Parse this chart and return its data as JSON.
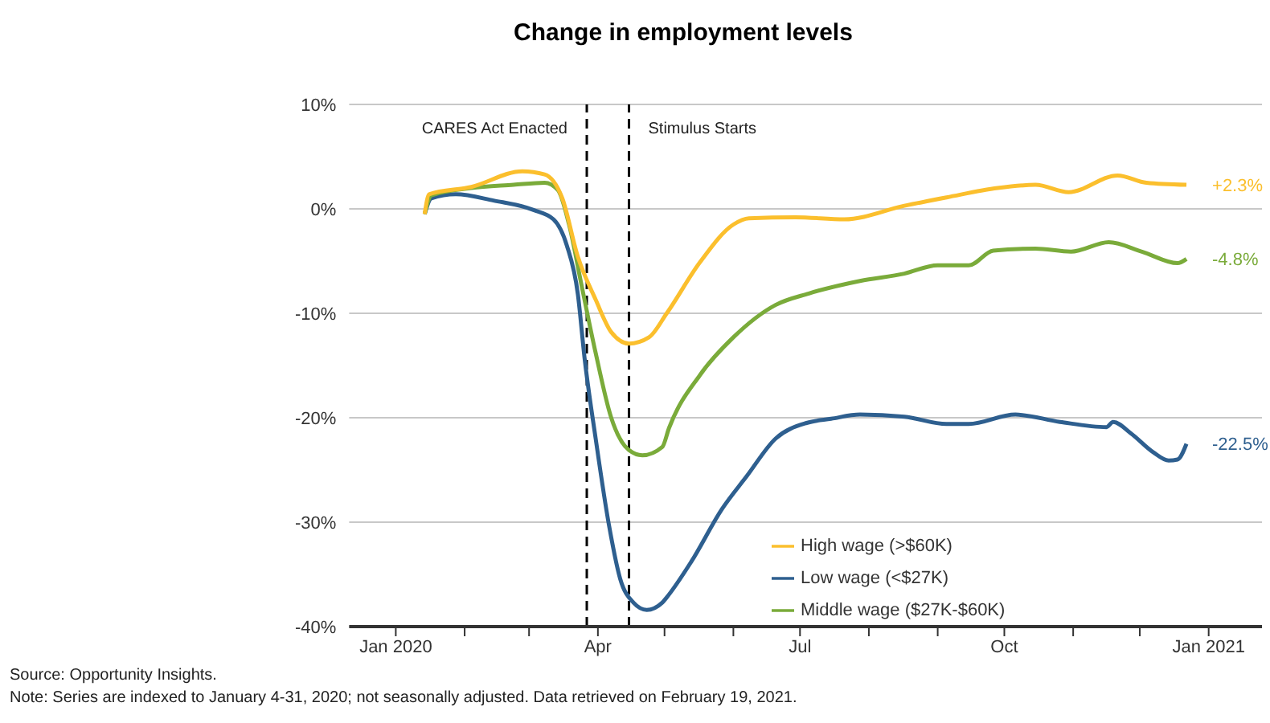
{
  "chart_data": {
    "type": "line",
    "title": "Change in employment levels",
    "series": [
      {
        "name": "Low wage (<$27K)",
        "color": "#2e5f8f",
        "x": [
          "2020-01-14",
          "2020-01-17",
          "2020-01-28",
          "2020-02-14",
          "2020-03-03",
          "2020-03-12",
          "2020-03-18",
          "2020-03-23",
          "2020-03-26",
          "2020-03-31",
          "2020-04-06",
          "2020-04-11",
          "2020-04-17",
          "2020-04-23",
          "2020-04-30",
          "2020-05-02",
          "2020-05-13",
          "2020-05-27",
          "2020-06-07",
          "2020-06-20",
          "2020-07-04",
          "2020-07-15",
          "2020-07-28",
          "2020-08-17",
          "2020-09-05",
          "2020-09-15",
          "2020-10-06",
          "2020-10-26",
          "2020-11-16",
          "2020-11-19",
          "2020-11-27",
          "2020-12-07",
          "2020-12-14",
          "2020-12-18",
          "2020-12-22"
        ],
        "values": [
          -0.5,
          1.0,
          1.4,
          0.8,
          -0.1,
          -1.0,
          -3.5,
          -8.2,
          -14.3,
          -22.0,
          -30.3,
          -35.4,
          -37.7,
          -38.4,
          -37.7,
          -37.2,
          -33.8,
          -28.7,
          -25.6,
          -22.0,
          -20.5,
          -20.1,
          -19.7,
          -19.9,
          -20.6,
          -20.6,
          -19.7,
          -20.4,
          -20.9,
          -20.4,
          -21.5,
          -23.3,
          -24.1,
          -24.0,
          -22.5
        ]
      },
      {
        "name": "Middle wage ($27K-$60K)",
        "color": "#7aab3a",
        "x": [
          "2020-01-14",
          "2020-01-17",
          "2020-02-04",
          "2020-02-23",
          "2020-03-08",
          "2020-03-14",
          "2020-03-19",
          "2020-03-25",
          "2020-03-31",
          "2020-04-07",
          "2020-04-15",
          "2020-04-21",
          "2020-04-30",
          "2020-05-03",
          "2020-05-17",
          "2020-06-01",
          "2020-06-20",
          "2020-07-05",
          "2020-07-28",
          "2020-08-17",
          "2020-09-01",
          "2020-09-15",
          "2020-09-26",
          "2020-10-15",
          "2020-10-31",
          "2020-11-17",
          "2020-12-02",
          "2020-12-18",
          "2020-12-22"
        ],
        "values": [
          -0.5,
          1.3,
          2.0,
          2.3,
          2.5,
          1.8,
          -1.5,
          -7.7,
          -13.8,
          -20.0,
          -23.1,
          -23.6,
          -22.8,
          -21.0,
          -15.9,
          -12.3,
          -9.2,
          -8.1,
          -6.9,
          -6.2,
          -5.4,
          -5.4,
          -4.0,
          -3.8,
          -4.1,
          -3.2,
          -4.1,
          -5.2,
          -4.8
        ]
      },
      {
        "name": "High wage (>$60K)",
        "color": "#fbbf2d",
        "x": [
          "2020-01-14",
          "2020-01-16",
          "2020-02-04",
          "2020-02-27",
          "2020-03-08",
          "2020-03-16",
          "2020-03-23",
          "2020-03-31",
          "2020-04-07",
          "2020-04-15",
          "2020-04-24",
          "2020-05-02",
          "2020-05-17",
          "2020-06-01",
          "2020-06-08",
          "2020-06-29",
          "2020-07-21",
          "2020-08-17",
          "2020-09-05",
          "2020-09-28",
          "2020-10-15",
          "2020-10-30",
          "2020-11-21",
          "2020-12-04",
          "2020-12-22"
        ],
        "values": [
          -0.5,
          1.4,
          2.1,
          3.6,
          3.3,
          1.0,
          -4.6,
          -8.7,
          -11.8,
          -12.9,
          -12.3,
          -10.0,
          -5.1,
          -1.5,
          -0.9,
          -0.8,
          -1.0,
          0.3,
          1.1,
          2.0,
          2.3,
          1.6,
          3.2,
          2.5,
          2.3
        ]
      }
    ],
    "xlim": [
      "2019-12-11",
      "2021-01-25"
    ],
    "xticks": [
      {
        "value": "2020-01-01",
        "label": "Jan 2020"
      },
      {
        "value": "2020-02-01",
        "label": null
      },
      {
        "value": "2020-03-01",
        "label": null
      },
      {
        "value": "2020-04-01",
        "label": "Apr"
      },
      {
        "value": "2020-05-01",
        "label": null
      },
      {
        "value": "2020-06-01",
        "label": null
      },
      {
        "value": "2020-07-01",
        "label": "Jul"
      },
      {
        "value": "2020-08-01",
        "label": null
      },
      {
        "value": "2020-09-01",
        "label": null
      },
      {
        "value": "2020-10-01",
        "label": "Oct"
      },
      {
        "value": "2020-11-01",
        "label": null
      },
      {
        "value": "2020-12-01",
        "label": null
      },
      {
        "value": "2021-01-01",
        "label": "Jan 2021"
      }
    ],
    "ylim": [
      -40,
      10
    ],
    "yticks": [
      {
        "value": -40,
        "label": "-40%"
      },
      {
        "value": -30,
        "label": "-30%"
      },
      {
        "value": -20,
        "label": "-20%"
      },
      {
        "value": -10,
        "label": "-10%"
      },
      {
        "value": 0,
        "label": "0%"
      },
      {
        "value": 10,
        "label": "10%"
      }
    ],
    "ref_lines": [
      {
        "axis": "x",
        "value": "2020-03-27",
        "label": "CARES Act Enacted",
        "color": "#000000",
        "line_style": "dashed"
      },
      {
        "axis": "x",
        "value": "2020-04-15",
        "label": "Stimulus Starts",
        "color": "#000000",
        "line_style": "dashed"
      }
    ],
    "annotations": [
      {
        "text": "+2.3%",
        "x": "2020-12-22",
        "y": 2.3
      },
      {
        "text": "-4.8%",
        "x": "2020-12-22",
        "y": -4.8
      },
      {
        "text": "-22.5%",
        "x": "2020-12-22",
        "y": -22.5
      },
      "Source: Opportunity Insights.",
      "Note: Series are indexed to January 4-31, 2020; not seasonally adjusted. Data retrieved on February 19, 2021."
    ],
    "grid": "y",
    "legend": "bottom right",
    "marker": "none",
    "line_style": "solid"
  }
}
